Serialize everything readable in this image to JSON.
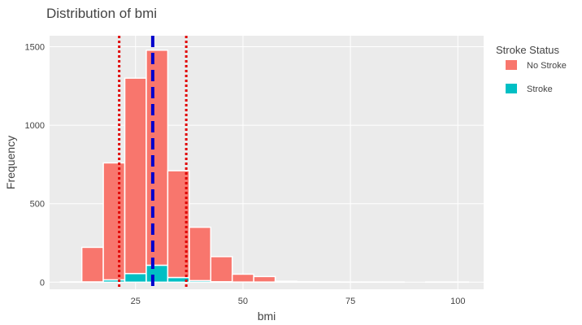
{
  "chart_data": {
    "type": "bar",
    "title": "Distribution of bmi",
    "xlabel": "bmi",
    "ylabel": "Frequency",
    "xlim": [
      5,
      106
    ],
    "ylim": [
      -45,
      1570
    ],
    "xticks": [
      25,
      50,
      75,
      100
    ],
    "yticks": [
      0,
      500,
      1000,
      1500
    ],
    "grid": true,
    "barmode": "stack",
    "legend": {
      "title": "Stroke Status",
      "position": "right"
    },
    "bin_width": 5,
    "bins": [
      [
        7.5,
        12.5
      ],
      [
        12.5,
        17.5
      ],
      [
        17.5,
        22.5
      ],
      [
        22.5,
        27.5
      ],
      [
        27.5,
        32.5
      ],
      [
        32.5,
        37.5
      ],
      [
        37.5,
        42.5
      ],
      [
        42.5,
        47.5
      ],
      [
        47.5,
        52.5
      ],
      [
        52.5,
        57.5
      ],
      [
        57.5,
        62.5
      ],
      [
        62.5,
        67.5
      ],
      [
        67.5,
        72.5
      ],
      [
        72.5,
        77.5
      ],
      [
        77.5,
        82.5
      ],
      [
        82.5,
        87.5
      ],
      [
        87.5,
        92.5
      ],
      [
        92.5,
        97.5
      ],
      [
        97.5,
        102.5
      ]
    ],
    "series": [
      {
        "name": "No Stroke",
        "color": "#F8766D",
        "values": [
          2,
          220,
          745,
          1245,
          1370,
          680,
          340,
          160,
          50,
          35,
          6,
          3,
          2,
          1,
          1,
          1,
          0,
          1,
          1
        ]
      },
      {
        "name": "Stroke",
        "color": "#00BFC4",
        "values": [
          0,
          2,
          15,
          55,
          108,
          30,
          10,
          3,
          1,
          1,
          0,
          0,
          0,
          0,
          0,
          0,
          0,
          0,
          0
        ]
      }
    ],
    "reference_lines": [
      {
        "x": 29.0,
        "color": "#0000CD",
        "style": "dashed"
      },
      {
        "x": 21.2,
        "color": "#E00000",
        "style": "dotted"
      },
      {
        "x": 36.8,
        "color": "#E00000",
        "style": "dotted"
      }
    ]
  }
}
